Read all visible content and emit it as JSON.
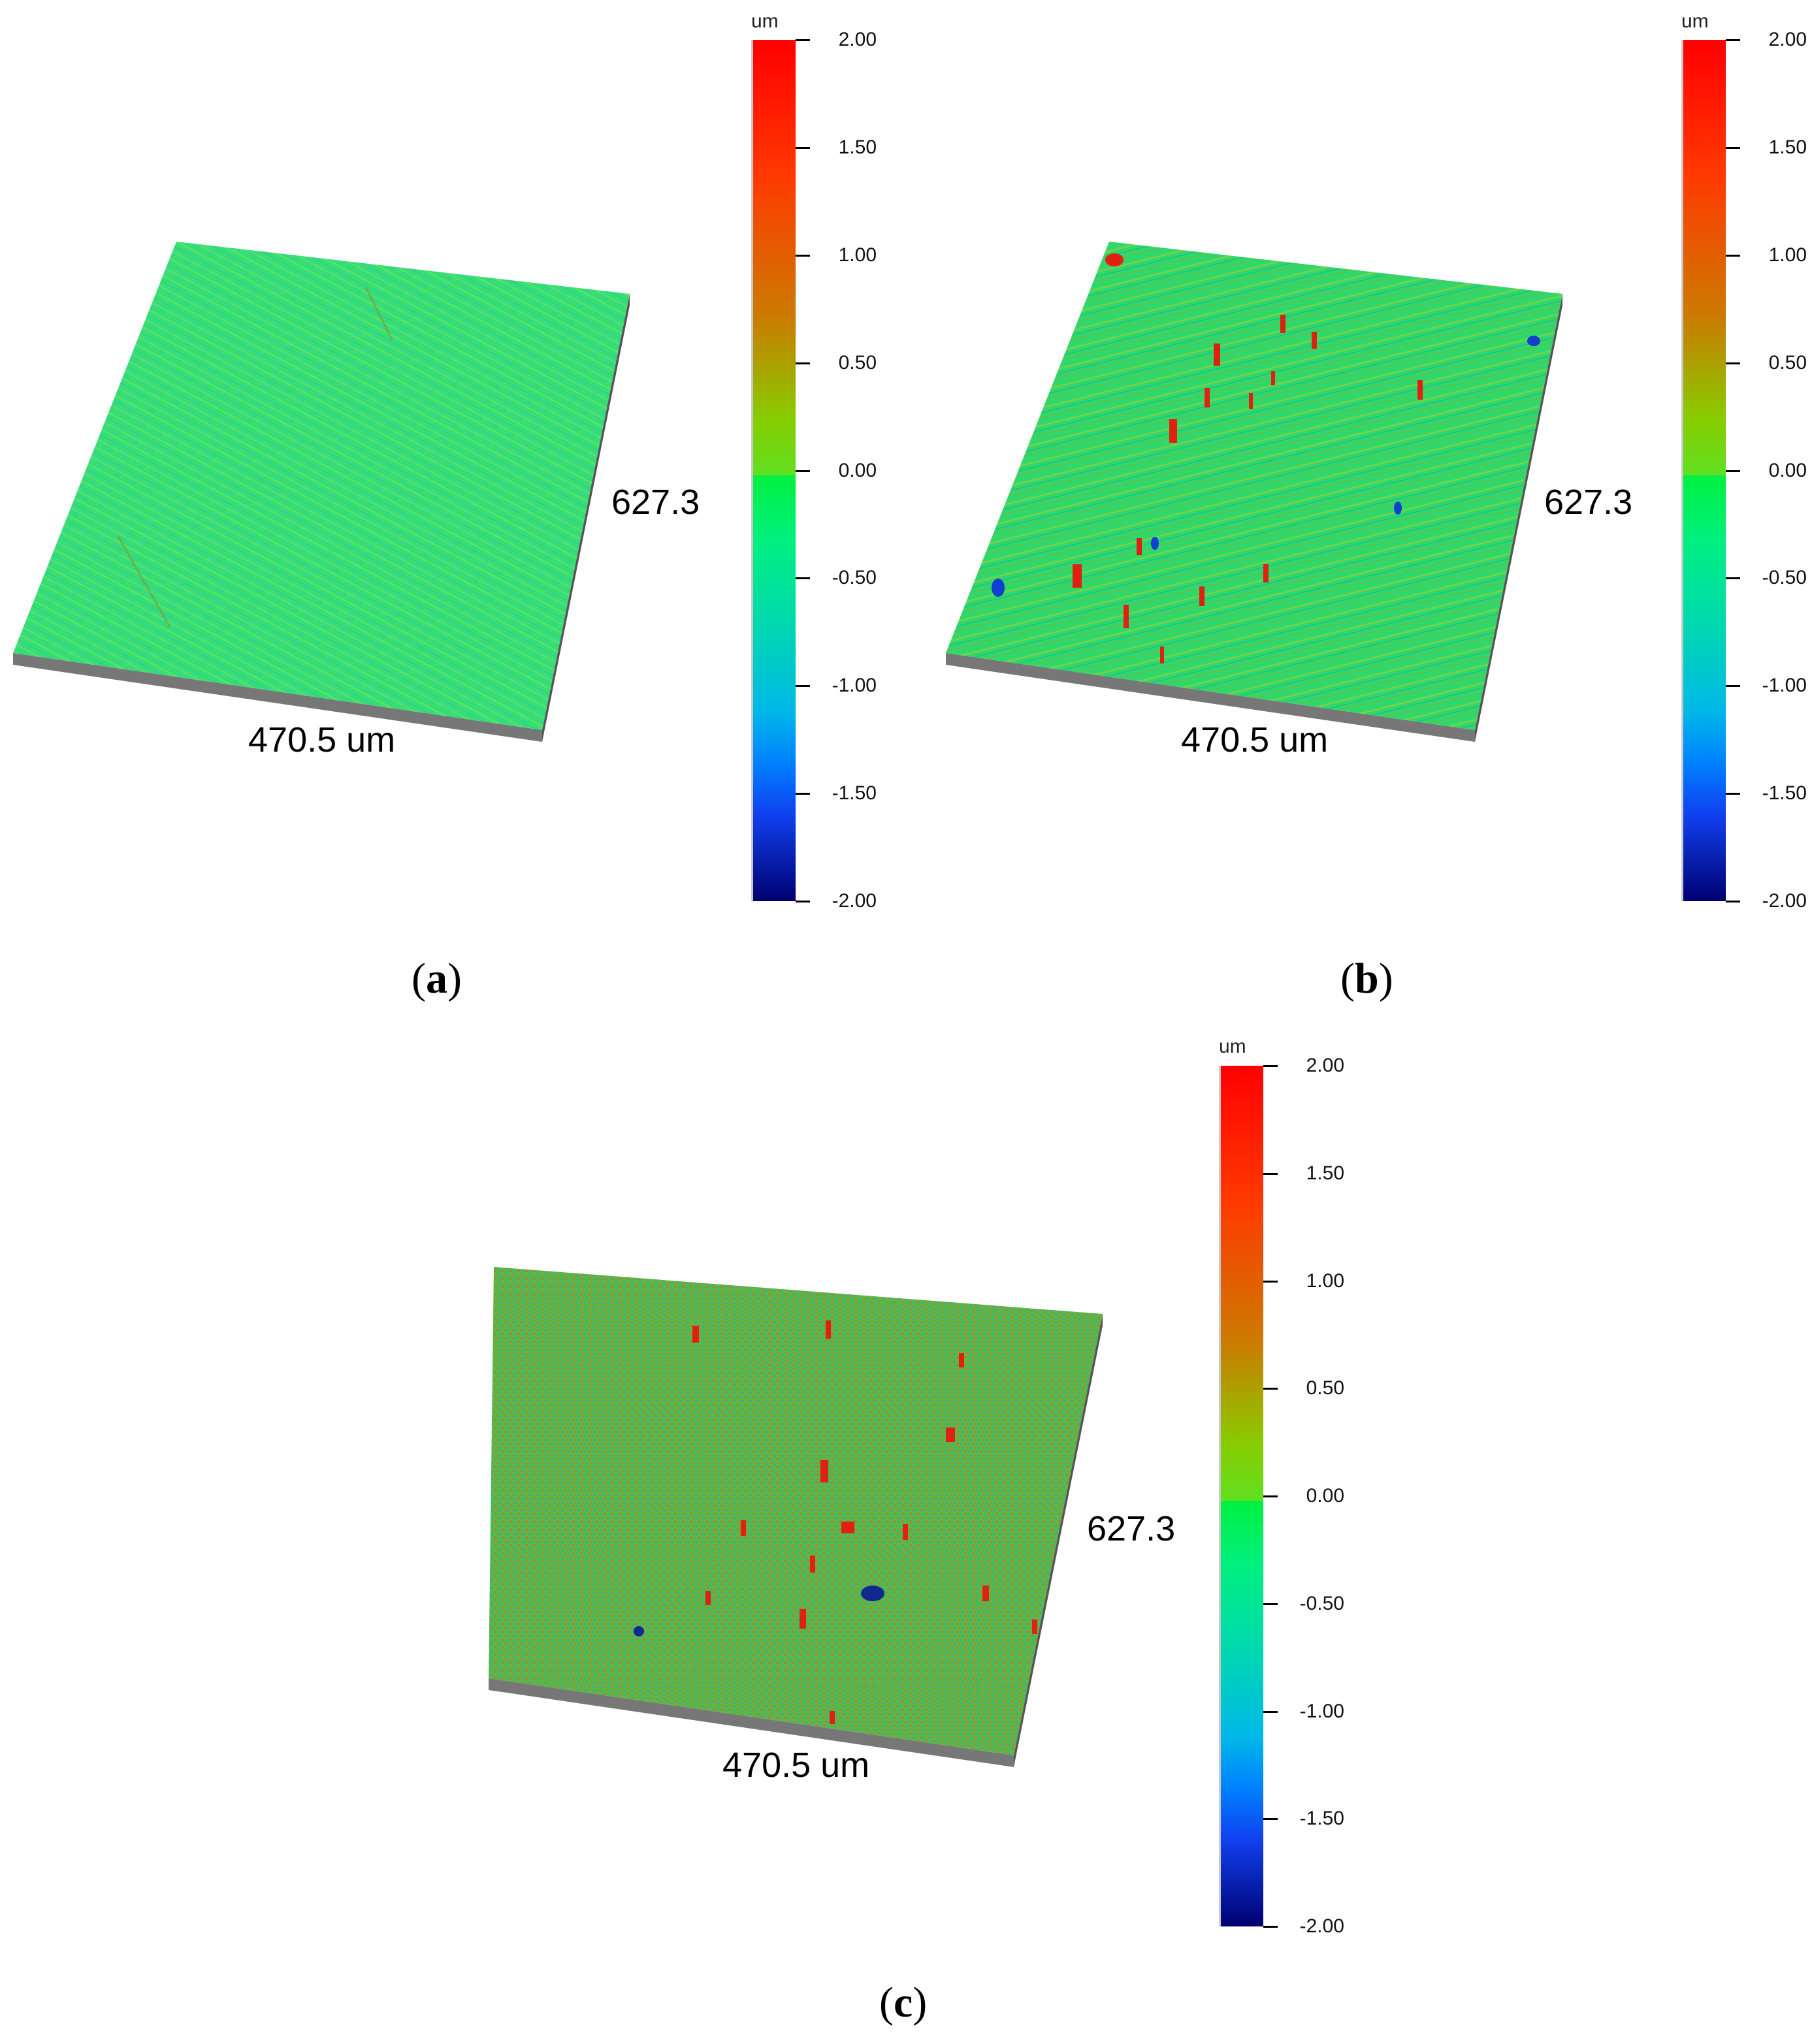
{
  "figure": {
    "panels": [
      {
        "id": "a",
        "caption_open": "(",
        "caption_letter": "a",
        "caption_close": ")",
        "width_label": "470.5 um",
        "length_label": "627.3",
        "surface_style": "smooth fine diagonal grinding streaks, uniform green"
      },
      {
        "id": "b",
        "caption_open": "(",
        "caption_letter": "b",
        "caption_close": ")",
        "width_label": "470.5 um",
        "length_label": "627.3",
        "surface_style": "green streaked surface with isolated red peaks and few blue pits"
      },
      {
        "id": "c",
        "caption_open": "(",
        "caption_letter": "c",
        "caption_close": ")",
        "width_label": "470.5 um",
        "length_label": "627.3",
        "surface_style": "rough, dense green/orange/blue texture with many red peaks"
      }
    ],
    "colorbar": {
      "unit": "um",
      "ticks": [
        "2.00",
        "1.50",
        "1.00",
        "0.50",
        "0.00",
        "-0.50",
        "-1.00",
        "-1.50",
        "-2.00"
      ],
      "colors": {
        "top": "#ff0000",
        "upper": "#ff3a00",
        "mid_upper": "#cc7a00",
        "mid": "#88cc00",
        "break": "#00f040",
        "lower_mid": "#00d8b0",
        "lower": "#0080ff",
        "low": "#1040f0",
        "bottom": "#000070"
      }
    }
  },
  "chart_data": [
    {
      "type": "heatmap",
      "title": "(a)",
      "subtype": "3D surface topography",
      "xlabel": "470.5 um",
      "ylabel": "627.3",
      "colorbar_label": "um",
      "colorbar_range": [
        -2.0,
        2.0
      ],
      "colorbar_ticks": [
        2.0,
        1.5,
        1.0,
        0.5,
        0.0,
        -0.5,
        -1.0,
        -1.5,
        -2.0
      ],
      "x_extent_um": 470.5,
      "y_extent_um": 627.3,
      "dominant_height_um": [
        -0.2,
        0.3
      ],
      "description": "Smooth surface with fine diagonal grinding streaks; nearly uniform green (~0 um)"
    },
    {
      "type": "heatmap",
      "title": "(b)",
      "subtype": "3D surface topography",
      "xlabel": "470.5 um",
      "ylabel": "627.3",
      "colorbar_label": "um",
      "colorbar_range": [
        -2.0,
        2.0
      ],
      "colorbar_ticks": [
        2.0,
        1.5,
        1.0,
        0.5,
        0.0,
        -0.5,
        -1.0,
        -1.5,
        -2.0
      ],
      "x_extent_um": 470.5,
      "y_extent_um": 627.3,
      "dominant_height_um": [
        -0.3,
        0.6
      ],
      "description": "Streaked surface with ~20 isolated red peaks (~1.5-2.0 um) and a few blue pits (~-1.0 um)"
    },
    {
      "type": "heatmap",
      "title": "(c)",
      "subtype": "3D surface topography",
      "xlabel": "470.5 um",
      "ylabel": "627.3",
      "colorbar_label": "um",
      "colorbar_range": [
        -2.0,
        2.0
      ],
      "colorbar_ticks": [
        2.0,
        1.5,
        1.0,
        0.5,
        0.0,
        -0.5,
        -1.0,
        -1.5,
        -2.0
      ],
      "x_extent_um": 470.5,
      "y_extent_um": 627.3,
      "dominant_height_um": [
        -0.8,
        1.2
      ],
      "description": "Rough surface with dense mixed green/orange/blue texture, many red peaks and a blue pit near center"
    }
  ]
}
